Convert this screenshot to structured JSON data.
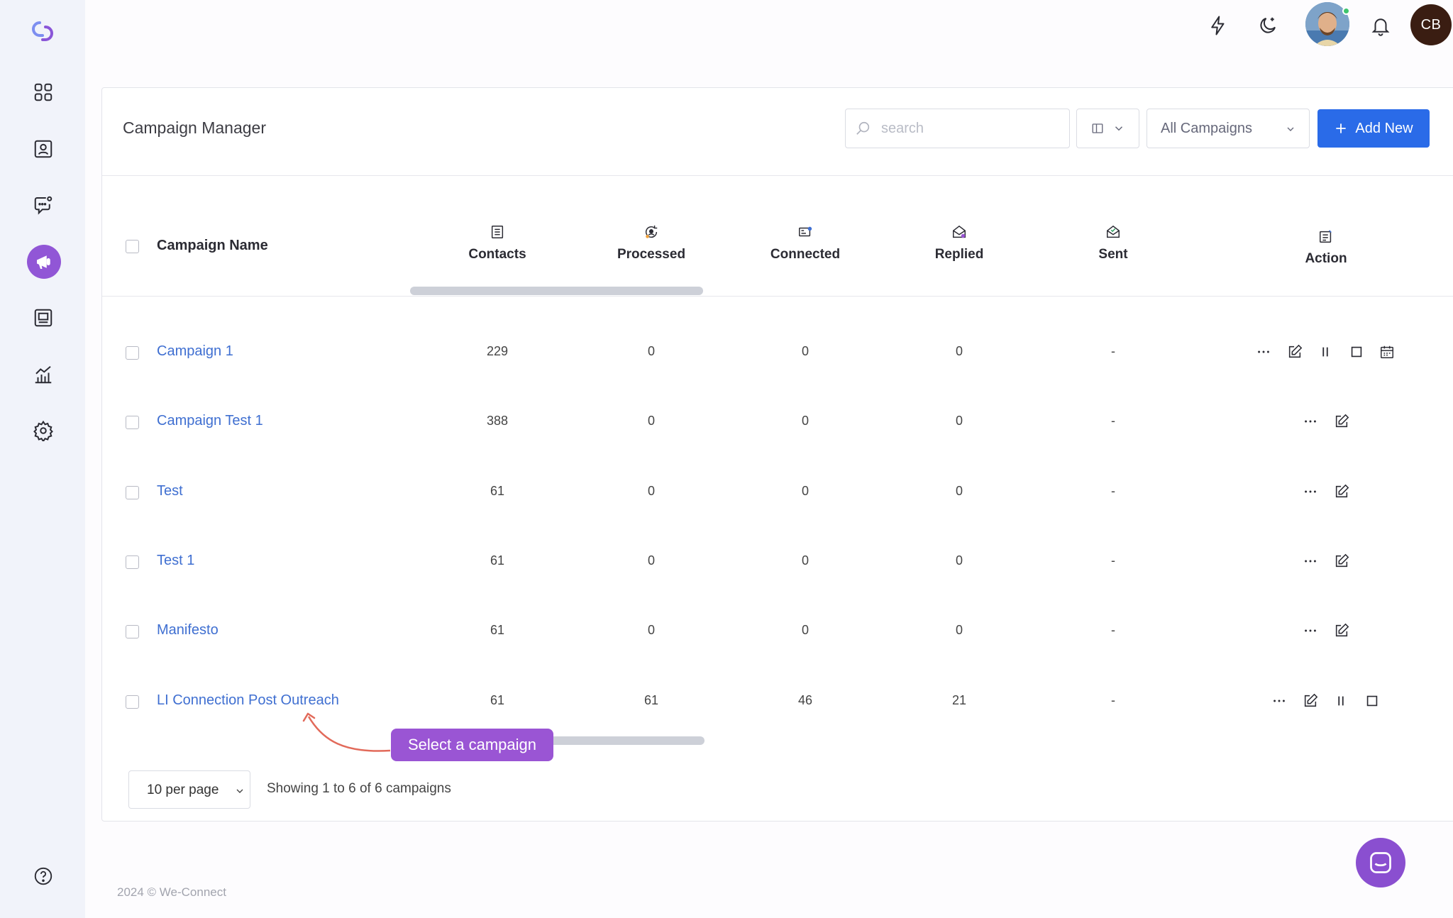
{
  "app": {
    "title": "Campaign Manager",
    "copyright": "2024 © We-Connect"
  },
  "sidebar": {
    "items": [
      {
        "icon": "dashboard-icon"
      },
      {
        "icon": "contacts-icon"
      },
      {
        "icon": "chat-icon"
      },
      {
        "icon": "campaign-icon",
        "active": true
      },
      {
        "icon": "inbox-icon"
      },
      {
        "icon": "analytics-icon"
      },
      {
        "icon": "settings-icon"
      }
    ],
    "help_icon": "help-icon"
  },
  "topbar": {
    "user_initials": "CB"
  },
  "toolbar": {
    "search_placeholder": "search",
    "filter_value": "All Campaigns",
    "add_label": "Add New"
  },
  "table": {
    "columns": {
      "name": "Campaign Name",
      "contacts": "Contacts",
      "processed": "Processed",
      "connected": "Connected",
      "replied": "Replied",
      "sent": "Sent",
      "action": "Action"
    },
    "rows": [
      {
        "name": "Campaign 1",
        "contacts": "229",
        "processed": "0",
        "connected": "0",
        "replied": "0",
        "sent": "-",
        "actions": [
          "more",
          "edit",
          "pause",
          "stop",
          "schedule"
        ]
      },
      {
        "name": "Campaign Test 1",
        "contacts": "388",
        "processed": "0",
        "connected": "0",
        "replied": "0",
        "sent": "-",
        "actions": [
          "more",
          "edit"
        ]
      },
      {
        "name": "Test",
        "contacts": "61",
        "processed": "0",
        "connected": "0",
        "replied": "0",
        "sent": "-",
        "actions": [
          "more",
          "edit"
        ]
      },
      {
        "name": "Test 1",
        "contacts": "61",
        "processed": "0",
        "connected": "0",
        "replied": "0",
        "sent": "-",
        "actions": [
          "more",
          "edit"
        ]
      },
      {
        "name": "Manifesto",
        "contacts": "61",
        "processed": "0",
        "connected": "0",
        "replied": "0",
        "sent": "-",
        "actions": [
          "more",
          "edit"
        ]
      },
      {
        "name": "LI Connection Post Outreach",
        "contacts": "61",
        "processed": "61",
        "connected": "46",
        "replied": "21",
        "sent": "-",
        "actions": [
          "more",
          "edit",
          "pause",
          "stop"
        ]
      }
    ]
  },
  "tooltip": {
    "text": "Select a campaign"
  },
  "pagination": {
    "per_page": "10 per page",
    "summary": "Showing 1 to 6 of 6 campaigns"
  },
  "colors": {
    "accent": "#2a6be8",
    "purple": "#9a55d4",
    "link": "#3f6fd1"
  }
}
